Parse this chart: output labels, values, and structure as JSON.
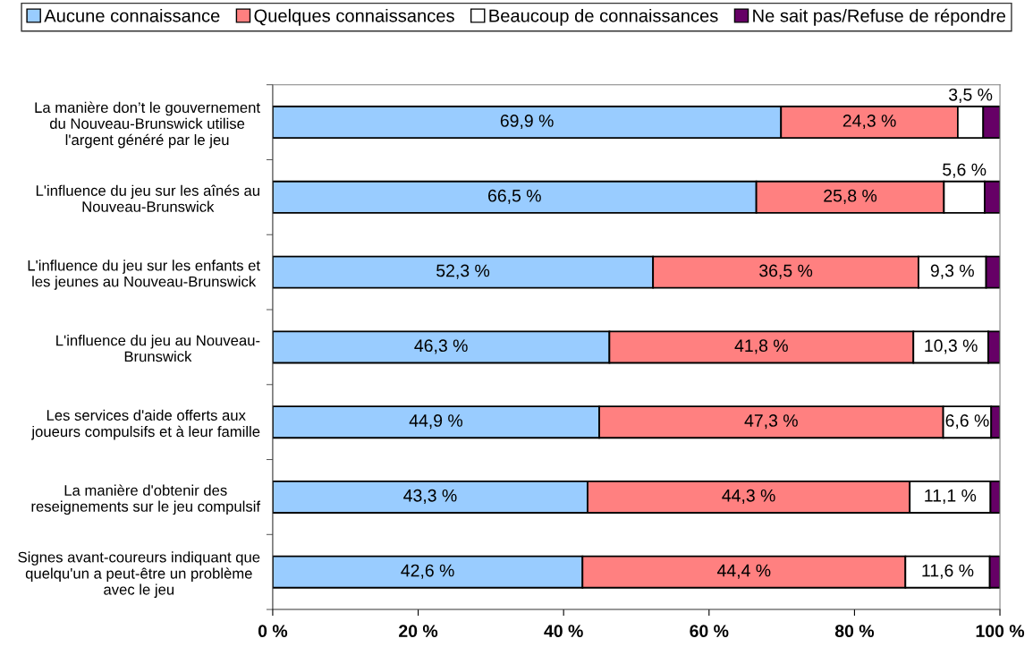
{
  "chart_data": {
    "type": "bar",
    "orientation": "horizontal",
    "stacked": true,
    "legend": "top",
    "categories": [
      "La manière don’t le gouvernement\ndu Nouveau-Brunswick utilise\nl'argent généré par le jeu",
      "L'influence du jeu sur les aînés au\nNouveau-Brunswick",
      "L'influence du jeu sur les enfants et\nles jeunes au Nouveau-Brunswick",
      "L'influence du jeu au Nouveau-\nBrunswick",
      "Les services d'aide offerts aux\njoueurs compulsifs et à leur famille",
      "La manière d'obtenir des\nreseignements sur le jeu compulsif",
      "Signes avant-coureurs indiquant que\nquelqu'un a peut-être un problème\navec le jeu"
    ],
    "series": [
      {
        "name": "Aucune connaissance",
        "color": "#99ccff",
        "values": [
          69.9,
          66.5,
          52.3,
          46.3,
          44.9,
          43.3,
          42.6
        ],
        "value_labels": [
          "69,9 %",
          "66,5 %",
          "52,3 %",
          "46,3 %",
          "44,9 %",
          "43,3 %",
          "42,6 %"
        ]
      },
      {
        "name": "Quelques connaissances",
        "color": "#ff8080",
        "values": [
          24.3,
          25.8,
          36.5,
          41.8,
          47.3,
          44.3,
          44.4
        ],
        "value_labels": [
          "24,3 %",
          "25,8 %",
          "36,5 %",
          "41,8 %",
          "47,3 %",
          "44,3 %",
          "44,4 %"
        ]
      },
      {
        "name": "Beaucoup de connaissances",
        "color": "#ffffff",
        "values": [
          3.5,
          5.6,
          9.3,
          10.3,
          6.6,
          11.1,
          11.6
        ],
        "value_labels": [
          "3,5 %",
          "5,6 %",
          "9,3 %",
          "10,3 %",
          "6,6 %",
          "11,1 %",
          "11,6 %"
        ]
      },
      {
        "name": "Ne sait pas/Refuse de répondre",
        "color": "#660066",
        "values": [
          2.3,
          2.1,
          1.9,
          1.6,
          1.2,
          1.3,
          1.4
        ]
      }
    ],
    "xlim": [
      0,
      100
    ],
    "xticks": [
      {
        "value": 0,
        "label": "0 %"
      },
      {
        "value": 20,
        "label": "20 %"
      },
      {
        "value": 40,
        "label": "40 %"
      },
      {
        "value": 60,
        "label": "60 %"
      },
      {
        "value": 80,
        "label": "80 %"
      },
      {
        "value": 100,
        "label": "100 %"
      }
    ]
  }
}
